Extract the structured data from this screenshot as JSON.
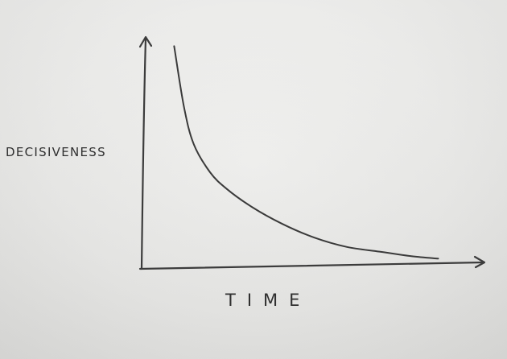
{
  "chart_data": {
    "type": "line",
    "title": "",
    "xlabel": "TIME",
    "ylabel": "DECISIVENESS",
    "grid": false,
    "legend": "none",
    "xlim": [
      0,
      100
    ],
    "ylim": [
      0,
      100
    ],
    "series": [
      {
        "x": [
          9,
          12,
          15,
          20,
          25,
          33,
          42,
          52,
          62,
          72,
          82,
          90
        ],
        "values": [
          94,
          68,
          52,
          40,
          33,
          25,
          18,
          12,
          8,
          6,
          4,
          3
        ]
      }
    ]
  },
  "colors": {
    "ink": "#3a3a3a",
    "paper": "#ececea"
  }
}
